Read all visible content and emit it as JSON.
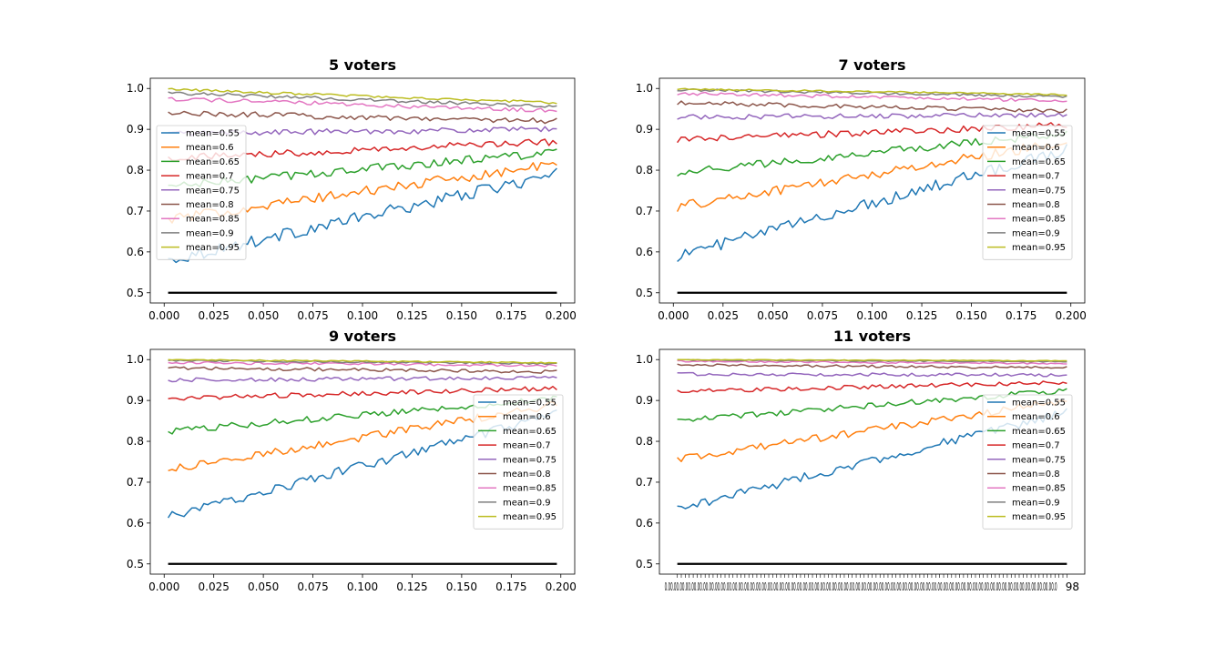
{
  "chart_data": [
    {
      "type": "line",
      "title": "5 voters",
      "xlabel": "",
      "ylabel": "",
      "xlim": [
        -0.007,
        0.207
      ],
      "ylim": [
        0.475,
        1.025
      ],
      "xtick_labels": [
        "0.000",
        "0.025",
        "0.050",
        "0.075",
        "0.100",
        "0.125",
        "0.150",
        "0.175",
        "0.200"
      ],
      "ytick_labels": [
        "0.5",
        "0.6",
        "0.7",
        "0.8",
        "0.9",
        "1.0"
      ],
      "x_range": [
        0.002,
        0.198
      ],
      "legend_position": "center-left",
      "series": [
        {
          "name": "mean=0.55",
          "color": "#1f77b4",
          "start": 0.58,
          "end": 0.79,
          "noise": 0.015
        },
        {
          "name": "mean=0.6",
          "color": "#ff7f0e",
          "start": 0.68,
          "end": 0.815,
          "noise": 0.012
        },
        {
          "name": "mean=0.65",
          "color": "#2ca02c",
          "start": 0.76,
          "end": 0.845,
          "noise": 0.011
        },
        {
          "name": "mean=0.7",
          "color": "#d62728",
          "start": 0.83,
          "end": 0.87,
          "noise": 0.009
        },
        {
          "name": "mean=0.75",
          "color": "#9467bd",
          "start": 0.89,
          "end": 0.9,
          "noise": 0.007
        },
        {
          "name": "mean=0.8",
          "color": "#8c564b",
          "start": 0.94,
          "end": 0.92,
          "noise": 0.007
        },
        {
          "name": "mean=0.85",
          "color": "#e377c2",
          "start": 0.975,
          "end": 0.945,
          "noise": 0.005
        },
        {
          "name": "mean=0.9",
          "color": "#7f7f7f",
          "start": 0.99,
          "end": 0.955,
          "noise": 0.004
        },
        {
          "name": "mean=0.95",
          "color": "#bcbd22",
          "start": 0.998,
          "end": 0.965,
          "noise": 0.003
        }
      ],
      "reference_line": {
        "y": 0.5,
        "color": "#000000"
      }
    },
    {
      "type": "line",
      "title": "7 voters",
      "xlabel": "",
      "ylabel": "",
      "xlim": [
        -0.007,
        0.207
      ],
      "ylim": [
        0.475,
        1.025
      ],
      "xtick_labels": [
        "0.000",
        "0.025",
        "0.050",
        "0.075",
        "0.100",
        "0.125",
        "0.150",
        "0.175",
        "0.200"
      ],
      "ytick_labels": [
        "0.5",
        "0.6",
        "0.7",
        "0.8",
        "0.9",
        "1.0"
      ],
      "x_range": [
        0.002,
        0.198
      ],
      "legend_position": "center-right",
      "series": [
        {
          "name": "mean=0.55",
          "color": "#1f77b4",
          "start": 0.59,
          "end": 0.85,
          "noise": 0.014
        },
        {
          "name": "mean=0.6",
          "color": "#ff7f0e",
          "start": 0.71,
          "end": 0.87,
          "noise": 0.012
        },
        {
          "name": "mean=0.65",
          "color": "#2ca02c",
          "start": 0.795,
          "end": 0.89,
          "noise": 0.01
        },
        {
          "name": "mean=0.7",
          "color": "#d62728",
          "start": 0.875,
          "end": 0.91,
          "noise": 0.008
        },
        {
          "name": "mean=0.75",
          "color": "#9467bd",
          "start": 0.93,
          "end": 0.935,
          "noise": 0.006
        },
        {
          "name": "mean=0.8",
          "color": "#8c564b",
          "start": 0.965,
          "end": 0.945,
          "noise": 0.005
        },
        {
          "name": "mean=0.85",
          "color": "#e377c2",
          "start": 0.988,
          "end": 0.97,
          "noise": 0.004
        },
        {
          "name": "mean=0.9",
          "color": "#7f7f7f",
          "start": 0.997,
          "end": 0.98,
          "noise": 0.003
        },
        {
          "name": "mean=0.95",
          "color": "#bcbd22",
          "start": 0.999,
          "end": 0.985,
          "noise": 0.002
        }
      ],
      "reference_line": {
        "y": 0.5,
        "color": "#000000"
      }
    },
    {
      "type": "line",
      "title": "9 voters",
      "xlabel": "",
      "ylabel": "",
      "xlim": [
        -0.007,
        0.207
      ],
      "ylim": [
        0.475,
        1.025
      ],
      "xtick_labels": [
        "0.000",
        "0.025",
        "0.050",
        "0.075",
        "0.100",
        "0.125",
        "0.150",
        "0.175",
        "0.200"
      ],
      "ytick_labels": [
        "0.5",
        "0.6",
        "0.7",
        "0.8",
        "0.9",
        "1.0"
      ],
      "x_range": [
        0.002,
        0.198
      ],
      "legend_position": "center-right",
      "series": [
        {
          "name": "mean=0.55",
          "color": "#1f77b4",
          "start": 0.615,
          "end": 0.865,
          "noise": 0.012
        },
        {
          "name": "mean=0.6",
          "color": "#ff7f0e",
          "start": 0.73,
          "end": 0.89,
          "noise": 0.01
        },
        {
          "name": "mean=0.65",
          "color": "#2ca02c",
          "start": 0.825,
          "end": 0.905,
          "noise": 0.008
        },
        {
          "name": "mean=0.7",
          "color": "#d62728",
          "start": 0.905,
          "end": 0.93,
          "noise": 0.006
        },
        {
          "name": "mean=0.75",
          "color": "#9467bd",
          "start": 0.95,
          "end": 0.955,
          "noise": 0.005
        },
        {
          "name": "mean=0.8",
          "color": "#8c564b",
          "start": 0.98,
          "end": 0.97,
          "noise": 0.004
        },
        {
          "name": "mean=0.85",
          "color": "#e377c2",
          "start": 0.993,
          "end": 0.985,
          "noise": 0.003
        },
        {
          "name": "mean=0.9",
          "color": "#7f7f7f",
          "start": 0.998,
          "end": 0.99,
          "noise": 0.002
        },
        {
          "name": "mean=0.95",
          "color": "#bcbd22",
          "start": 1.0,
          "end": 0.992,
          "noise": 0.0015
        }
      ],
      "reference_line": {
        "y": 0.5,
        "color": "#000000"
      }
    },
    {
      "type": "line",
      "title": "11 voters",
      "xlabel": "",
      "ylabel": "",
      "xlim": [
        -0.007,
        0.207
      ],
      "ylim": [
        0.475,
        1.025
      ],
      "xtick_labels": [],
      "ytick_labels": [
        "0.5",
        "0.6",
        "0.7",
        "0.8",
        "0.9",
        "1.0"
      ],
      "x_range": [
        0.002,
        0.198
      ],
      "xtick_overlap_text": "0.00.00.00.00.00.00.00.00.00.00.00.00.00.00.00.00.00.00.00.00.00.00.00.00.00.00.00.00.00.00.00.00.00.00.00.00.00.00.00.00.00.00.00.00.00.00.00.00.00.00.00.00.00.00.00.00.00.00.00.00.00.00.00.00.00.00.0",
      "xtick_end_label": "98",
      "legend_position": "center-right",
      "series": [
        {
          "name": "mean=0.55",
          "color": "#1f77b4",
          "start": 0.635,
          "end": 0.87,
          "noise": 0.011
        },
        {
          "name": "mean=0.6",
          "color": "#ff7f0e",
          "start": 0.755,
          "end": 0.9,
          "noise": 0.009
        },
        {
          "name": "mean=0.65",
          "color": "#2ca02c",
          "start": 0.85,
          "end": 0.925,
          "noise": 0.007
        },
        {
          "name": "mean=0.7",
          "color": "#d62728",
          "start": 0.922,
          "end": 0.945,
          "noise": 0.005
        },
        {
          "name": "mean=0.75",
          "color": "#9467bd",
          "start": 0.965,
          "end": 0.962,
          "noise": 0.004
        },
        {
          "name": "mean=0.8",
          "color": "#8c564b",
          "start": 0.987,
          "end": 0.98,
          "noise": 0.003
        },
        {
          "name": "mean=0.85",
          "color": "#e377c2",
          "start": 0.996,
          "end": 0.99,
          "noise": 0.002
        },
        {
          "name": "mean=0.9",
          "color": "#7f7f7f",
          "start": 0.999,
          "end": 0.995,
          "noise": 0.0015
        },
        {
          "name": "mean=0.95",
          "color": "#bcbd22",
          "start": 1.0,
          "end": 0.997,
          "noise": 0.001
        }
      ],
      "reference_line": {
        "y": 0.5,
        "color": "#000000"
      }
    }
  ]
}
